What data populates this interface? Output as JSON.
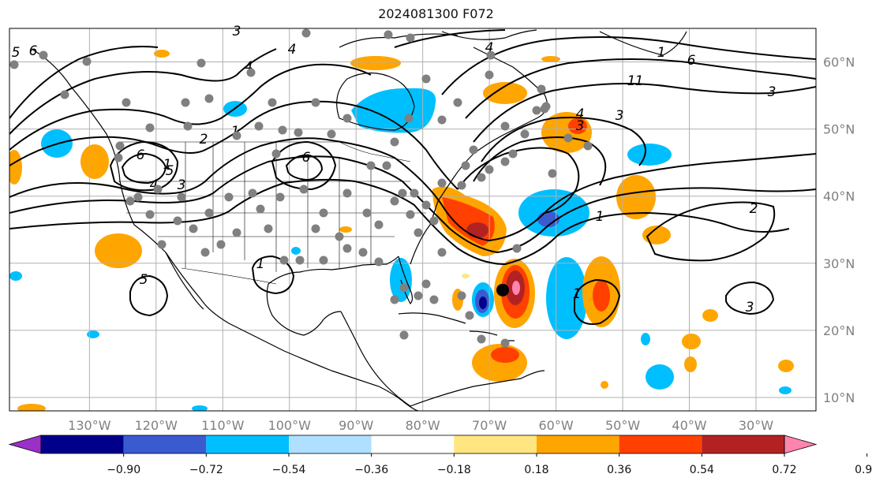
{
  "title": "2024081300 F072",
  "map": {
    "type": "weather-map",
    "projection": "PlateCarree",
    "lon_range": [
      -142,
      -21
    ],
    "lat_range": [
      8,
      65
    ],
    "lon_ticks": [
      "130°W",
      "120°W",
      "110°W",
      "100°W",
      "90°W",
      "80°W",
      "70°W",
      "60°W",
      "50°W",
      "40°W",
      "30°W"
    ],
    "lat_ticks": [
      "60°N",
      "50°N",
      "40°N",
      "30°N",
      "20°N",
      "10°N"
    ],
    "storm_marker": {
      "lon": -68,
      "lat": 26
    },
    "contour_labels": [
      "5",
      "6",
      "3",
      "4",
      "4",
      "1",
      "2",
      "6",
      "5",
      "4",
      "3",
      "3",
      "6",
      "4",
      "1",
      "3",
      "3",
      "4",
      "5",
      "2",
      "1",
      "1",
      "6",
      "1",
      "1",
      "3",
      "1",
      "1"
    ]
  },
  "colorbar": {
    "labels": [
      "−0.90",
      "−0.72",
      "−0.54",
      "−0.36",
      "−0.18",
      "0.18",
      "0.36",
      "0.54",
      "0.72",
      "0.90"
    ],
    "colors": [
      "#9b30c8",
      "#00008b",
      "#3a5bd0",
      "#00bfff",
      "#b0e0ff",
      "#ffffff",
      "#ffe680",
      "#ffa500",
      "#ff4000",
      "#b22222",
      "#ff85b0"
    ]
  }
}
